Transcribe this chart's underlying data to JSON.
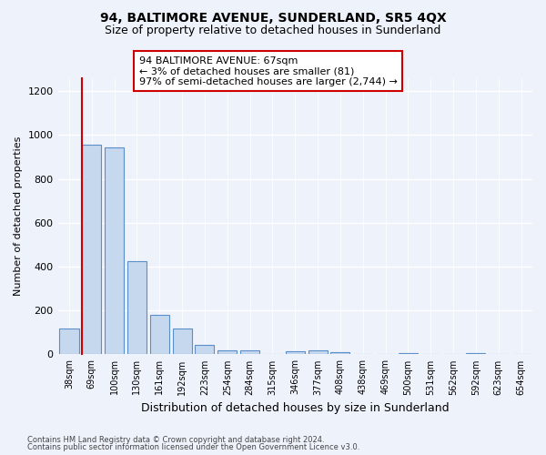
{
  "title": "94, BALTIMORE AVENUE, SUNDERLAND, SR5 4QX",
  "subtitle": "Size of property relative to detached houses in Sunderland",
  "xlabel": "Distribution of detached houses by size in Sunderland",
  "ylabel": "Number of detached properties",
  "footnote1": "Contains HM Land Registry data © Crown copyright and database right 2024.",
  "footnote2": "Contains public sector information licensed under the Open Government Licence v3.0.",
  "categories": [
    "38sqm",
    "69sqm",
    "100sqm",
    "130sqm",
    "161sqm",
    "192sqm",
    "223sqm",
    "254sqm",
    "284sqm",
    "315sqm",
    "346sqm",
    "377sqm",
    "408sqm",
    "438sqm",
    "469sqm",
    "500sqm",
    "531sqm",
    "562sqm",
    "592sqm",
    "623sqm",
    "654sqm"
  ],
  "values": [
    120,
    955,
    945,
    425,
    182,
    118,
    42,
    20,
    18,
    0,
    15,
    18,
    10,
    0,
    0,
    8,
    0,
    0,
    8,
    0,
    0
  ],
  "bar_color": "#c5d8ee",
  "bar_edge_color": "#5b8fca",
  "highlight_bar_index": 1,
  "highlight_bar_edge_color": "#cc0000",
  "ylim": [
    0,
    1260
  ],
  "yticks": [
    0,
    200,
    400,
    600,
    800,
    1000,
    1200
  ],
  "annotation_text": "94 BALTIMORE AVENUE: 67sqm\n← 3% of detached houses are smaller (81)\n97% of semi-detached houses are larger (2,744) →",
  "annotation_box_color": "#ffffff",
  "annotation_box_edge_color": "#cc0000",
  "background_color": "#eef2fb",
  "grid_color": "#ffffff",
  "title_fontsize": 10,
  "subtitle_fontsize": 9,
  "ylabel_fontsize": 8,
  "xlabel_fontsize": 9,
  "tick_fontsize": 7,
  "footnote_fontsize": 6
}
